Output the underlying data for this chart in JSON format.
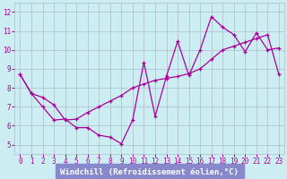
{
  "xlabel": "Windchill (Refroidissement éolien,°C)",
  "xlim": [
    -0.5,
    23.5
  ],
  "ylim": [
    4.5,
    12.5
  ],
  "yticks": [
    5,
    6,
    7,
    8,
    9,
    10,
    11,
    12
  ],
  "xticks": [
    0,
    1,
    2,
    3,
    4,
    5,
    6,
    7,
    8,
    9,
    10,
    11,
    12,
    13,
    14,
    15,
    16,
    17,
    18,
    19,
    20,
    21,
    22,
    23
  ],
  "plot_bg": "#cceef2",
  "xlabel_bg": "#8888cc",
  "line_color": "#aa0099",
  "marker_color": "#cc00aa",
  "line1_x": [
    0,
    1,
    2,
    3,
    4,
    5,
    6,
    7,
    8,
    9,
    10,
    11,
    12,
    13,
    14,
    15,
    16,
    17,
    18,
    19,
    20,
    21,
    22,
    23
  ],
  "line1_y": [
    8.7,
    7.7,
    7.5,
    7.1,
    6.3,
    6.35,
    6.7,
    7.0,
    7.3,
    7.6,
    8.0,
    8.2,
    8.4,
    8.5,
    8.6,
    8.75,
    9.0,
    9.5,
    10.0,
    10.2,
    10.4,
    10.6,
    10.8,
    8.7
  ],
  "line2_x": [
    0,
    1,
    2,
    3,
    4,
    5,
    6,
    7,
    8,
    9,
    10,
    11,
    12,
    13,
    14,
    15,
    16,
    17,
    18,
    19,
    20,
    21,
    22,
    23
  ],
  "line2_y": [
    8.7,
    7.7,
    7.0,
    6.3,
    6.35,
    5.9,
    5.9,
    5.5,
    5.4,
    5.05,
    6.3,
    9.35,
    6.5,
    8.6,
    10.45,
    8.65,
    10.0,
    11.75,
    11.2,
    10.8,
    9.9,
    10.9,
    10.0,
    10.1
  ],
  "font_family": "monospace",
  "tick_fontsize": 5.5,
  "xlabel_fontsize": 6.5
}
